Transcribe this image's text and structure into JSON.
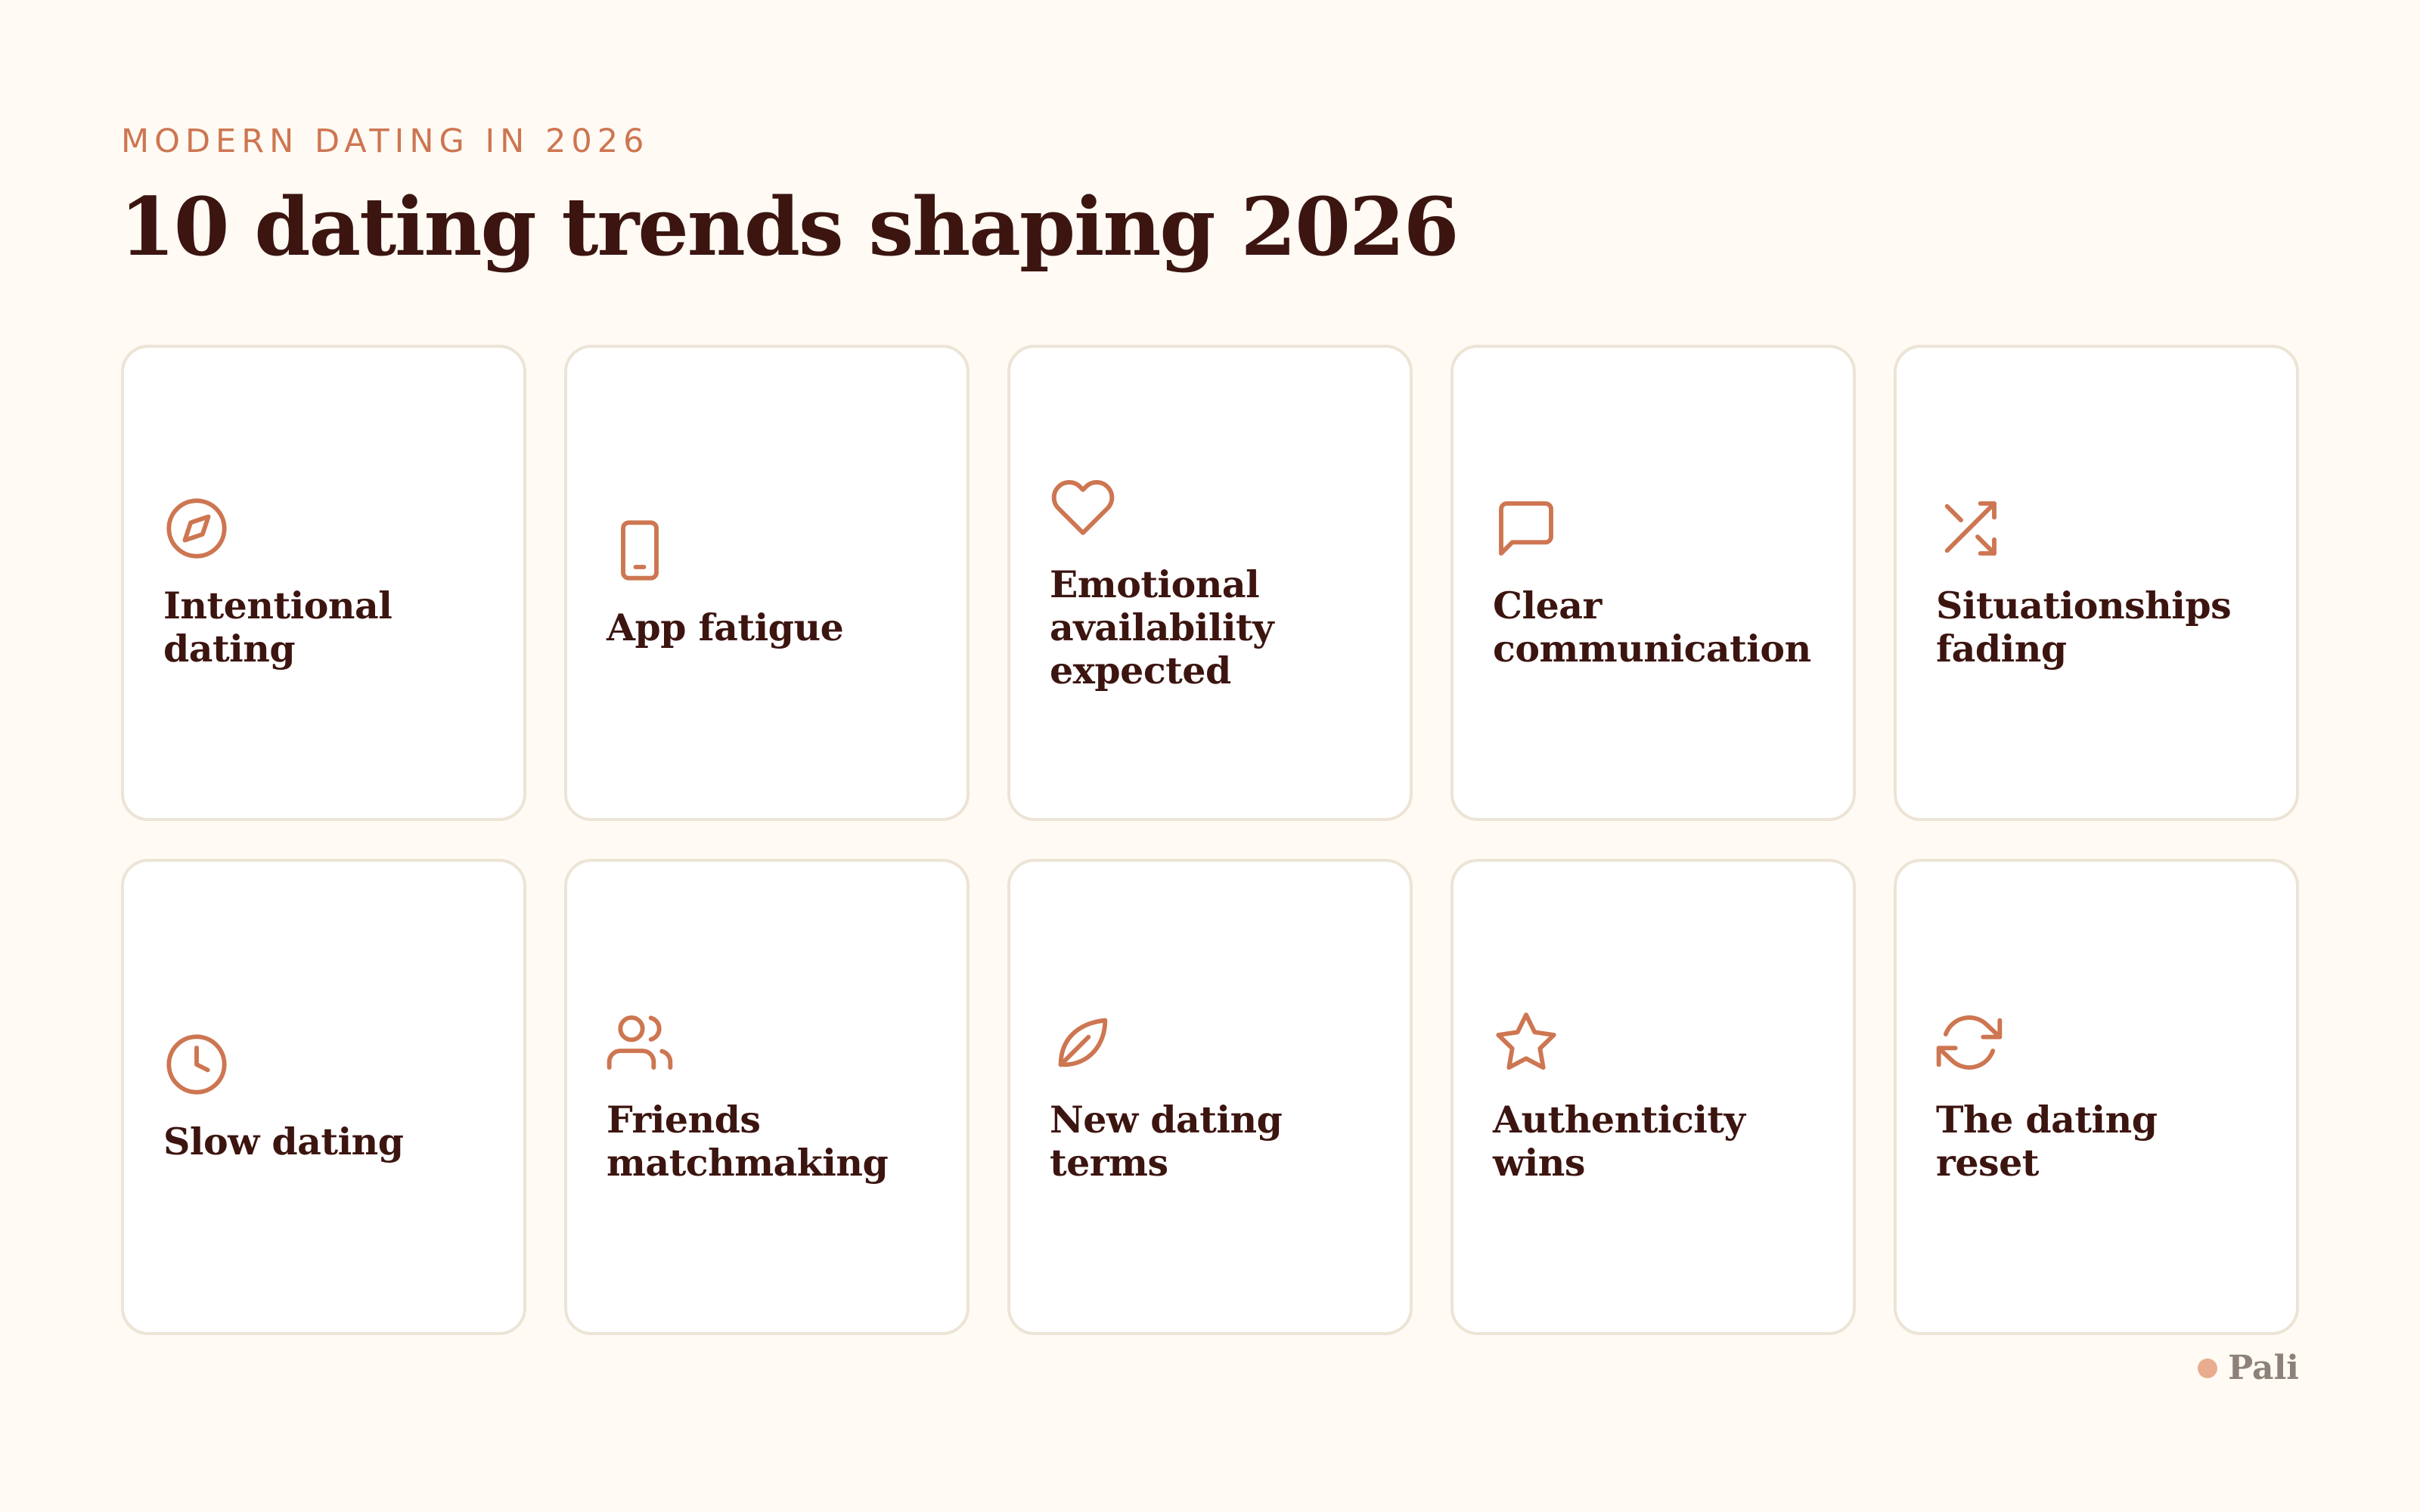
{
  "header": {
    "eyebrow": "MODERN DATING IN 2026",
    "title": "10 dating trends shaping 2026"
  },
  "colors": {
    "background": "#fffaf4",
    "accent": "#cd7651",
    "heading": "#3c1510",
    "card_border": "#ece4d6",
    "brand_dot": "#e9ac8f",
    "brand_text": "#8e817a"
  },
  "cards": [
    {
      "label": "Intentional dating",
      "icon": "compass-icon"
    },
    {
      "label": "App fatigue",
      "icon": "smartphone-icon"
    },
    {
      "label": "Emotional availability expected",
      "icon": "heart-icon"
    },
    {
      "label": "Clear communication",
      "icon": "message-square-icon"
    },
    {
      "label": "Situationships fading",
      "icon": "shuffle-icon"
    },
    {
      "label": "Slow dating",
      "icon": "clock-icon"
    },
    {
      "label": "Friends matchmaking",
      "icon": "users-icon"
    },
    {
      "label": "New dating terms",
      "icon": "leaf-icon"
    },
    {
      "label": "Authenticity wins",
      "icon": "star-icon"
    },
    {
      "label": "The dating reset",
      "icon": "refresh-icon"
    }
  ],
  "footer": {
    "brand": "Pali"
  }
}
